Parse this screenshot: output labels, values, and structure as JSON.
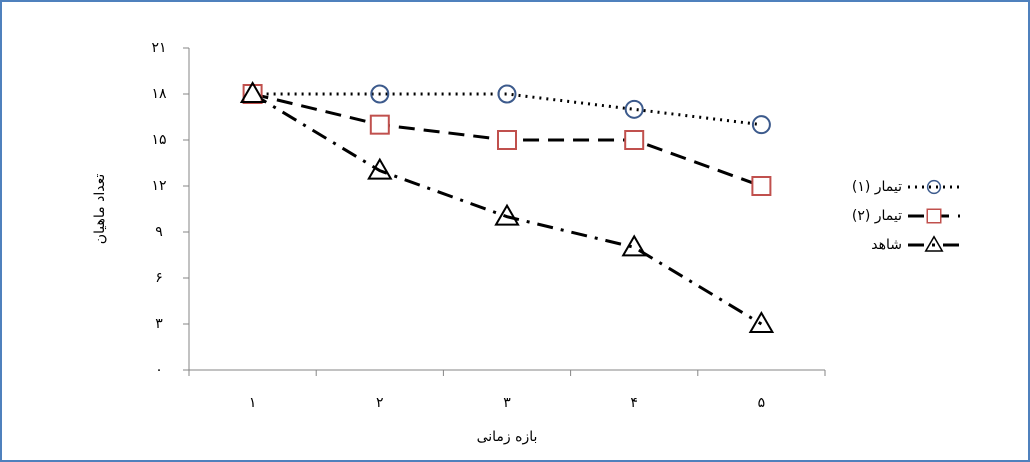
{
  "chart_data": {
    "type": "line",
    "x_label": "بازه زمانی",
    "y_label": "تعداد ماهیان",
    "categories": [
      "۱",
      "۲",
      "۳",
      "۴",
      "۵"
    ],
    "series": [
      {
        "name": "تیمار (۱)",
        "color": "#3c5a8c",
        "values": [
          18,
          18,
          18,
          17,
          16
        ]
      },
      {
        "name": "تیمار (۲)",
        "color": "#c0504d",
        "values": [
          18,
          16,
          15,
          15,
          12
        ]
      },
      {
        "name": "شاهد",
        "color": "#000000",
        "values": [
          18,
          13,
          10,
          8,
          3
        ]
      }
    ],
    "ylim": [
      0,
      21
    ],
    "yticks": [
      {
        "value": 0,
        "label": "۰"
      },
      {
        "value": 3,
        "label": "۳"
      },
      {
        "value": 6,
        "label": "۶"
      },
      {
        "value": 9,
        "label": "۹"
      },
      {
        "value": 12,
        "label": "۱۲"
      },
      {
        "value": 15,
        "label": "۱۵"
      },
      {
        "value": 18,
        "label": "۱۸"
      },
      {
        "value": 21,
        "label": "۲۱"
      }
    ],
    "grid": false,
    "legend": "right"
  }
}
